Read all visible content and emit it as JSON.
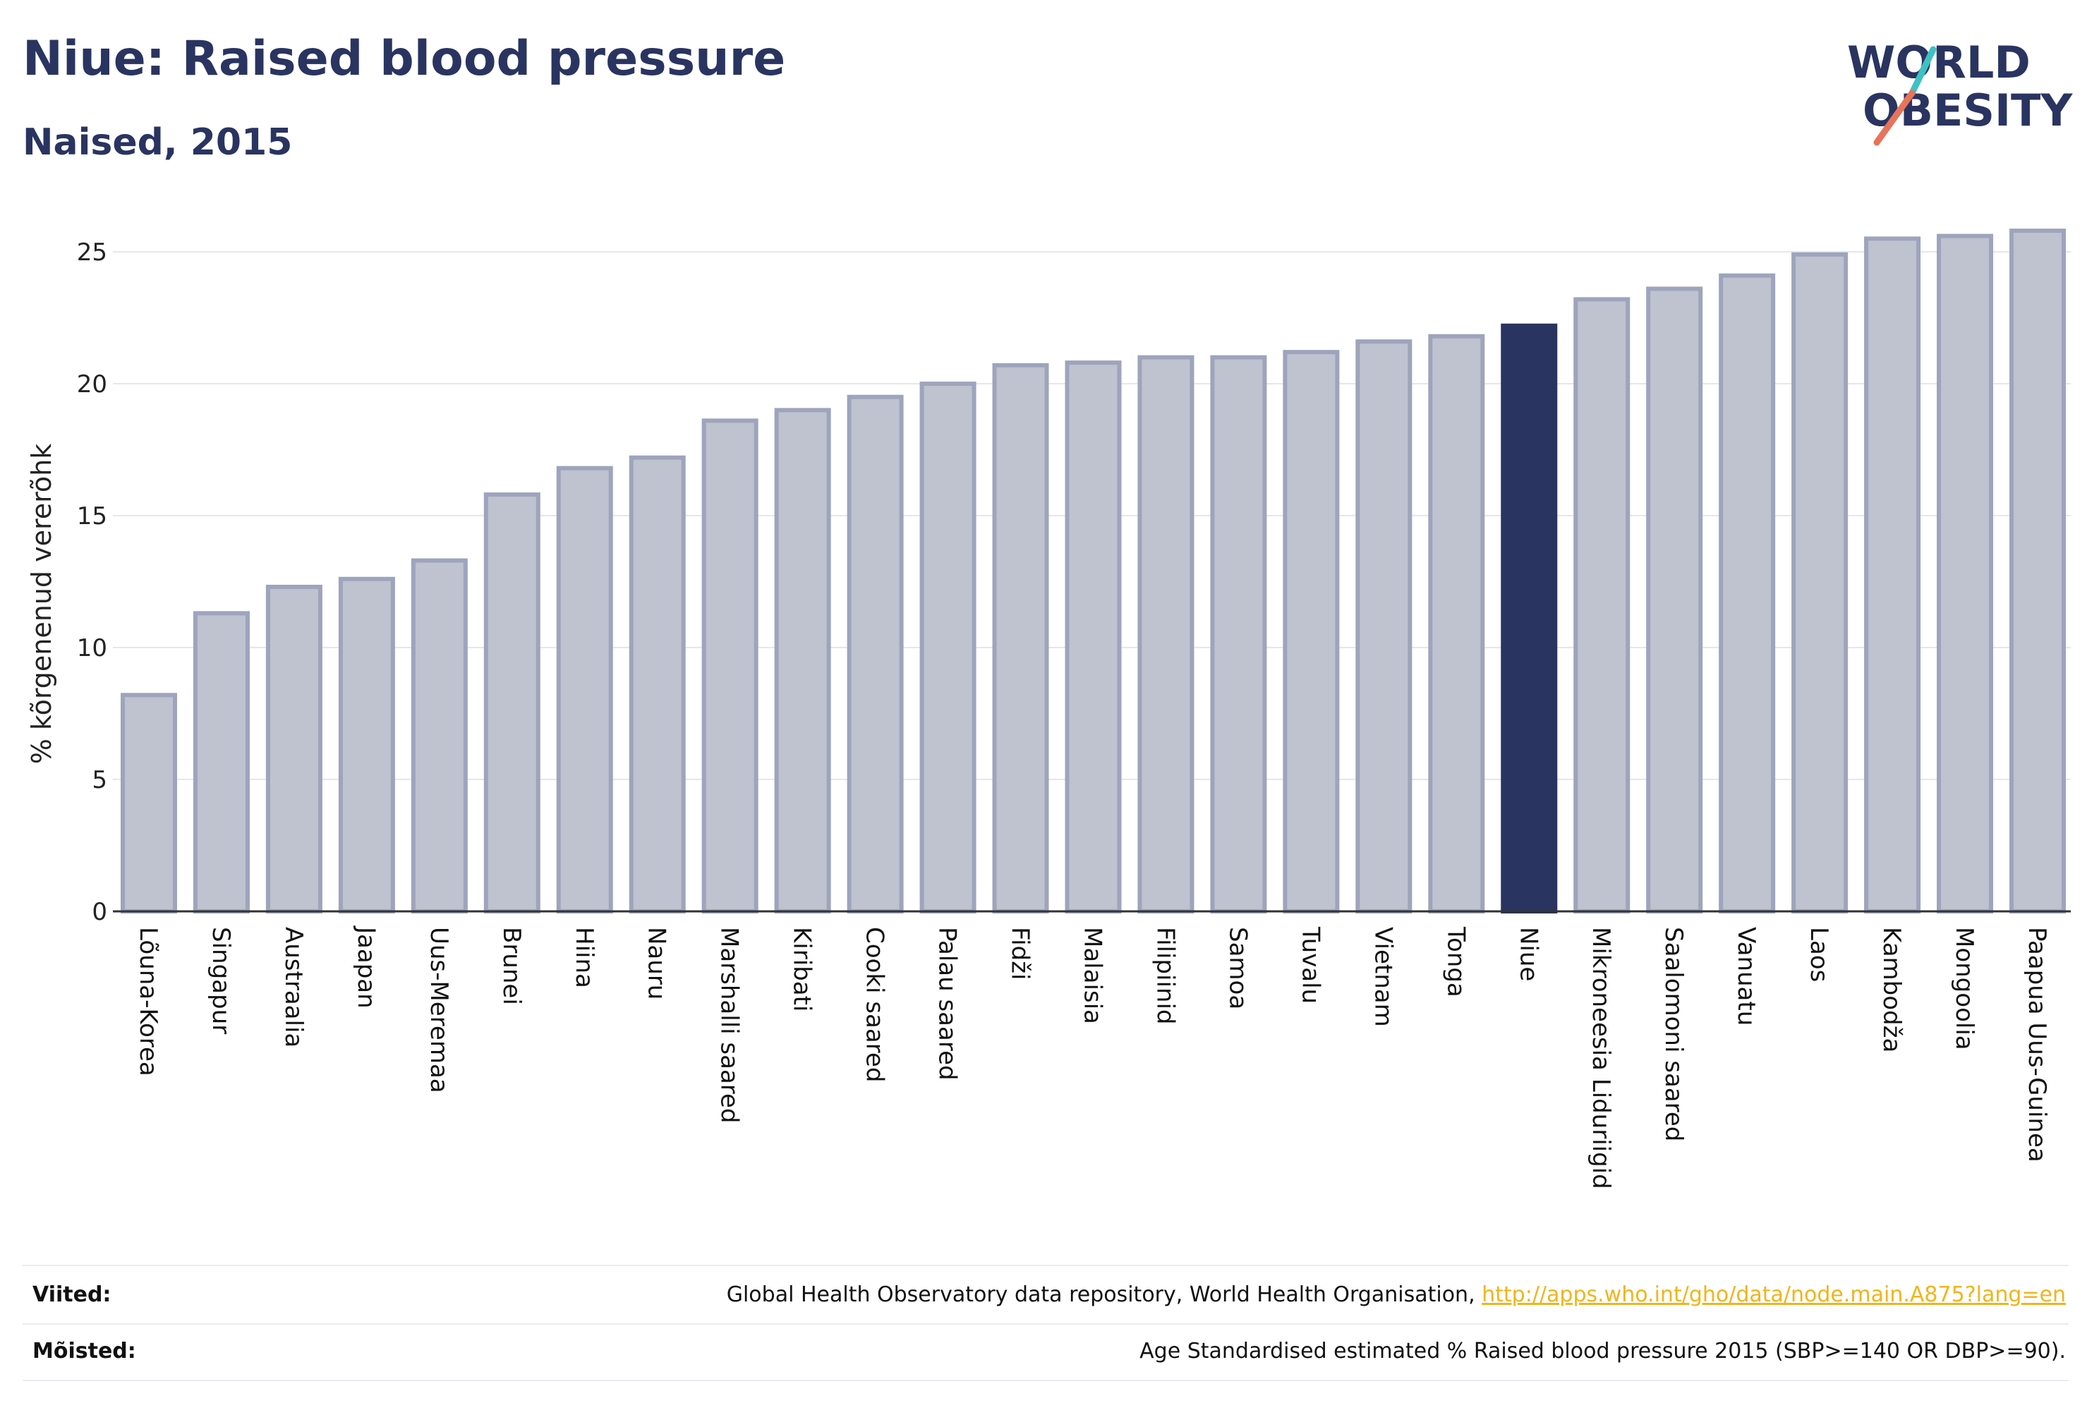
{
  "header": {
    "title": "Niue: Raised blood pressure",
    "subtitle": "Naised, 2015"
  },
  "logo": {
    "line1": "WORLD",
    "line2": "OBESITY",
    "colors": {
      "text": "#2a3461",
      "slash_top": "#3ec1c3",
      "slash_bottom": "#e8735a"
    }
  },
  "colors": {
    "bar_default": "#bfc2cf",
    "bar_default_stroke": "#9ea4bc",
    "bar_highlight": "#2a3461",
    "grid": "#e6e6ec",
    "axis": "#333333"
  },
  "chart_data": {
    "type": "bar",
    "ylabel": "% kõrgenenud vererõhk",
    "xlabel": "",
    "ylim": [
      0,
      27
    ],
    "yticks": [
      0,
      5,
      10,
      15,
      20,
      25
    ],
    "grid": true,
    "highlight": "Niue",
    "categories": [
      "Lõuna-Korea",
      "Singapur",
      "Austraalia",
      "Jaapan",
      "Uus-Meremaa",
      "Brunei",
      "Hiina",
      "Nauru",
      "Marshalli saared",
      "Kiribati",
      "Cooki saared",
      "Palau saared",
      "Fidži",
      "Malaisia",
      "Filipiinid",
      "Samoa",
      "Tuvalu",
      "Vietnam",
      "Tonga",
      "Niue",
      "Mikroneesia Liduriigid",
      "Saalomoni saared",
      "Vanuatu",
      "Laos",
      "Kambodža",
      "Mongoolia",
      "Paapua Uus-Guinea"
    ],
    "values": [
      8.2,
      11.3,
      12.3,
      12.6,
      13.3,
      15.8,
      16.8,
      17.2,
      18.6,
      19.0,
      19.5,
      20.0,
      20.7,
      20.8,
      21.0,
      21.0,
      21.2,
      21.6,
      21.8,
      22.2,
      23.2,
      23.6,
      24.1,
      24.9,
      25.5,
      25.6,
      25.8
    ]
  },
  "footer": {
    "sources_label": "Viited:",
    "sources_text": "Global Health Observatory data repository, World Health Organisation, ",
    "sources_link": "http://apps.who.int/gho/data/node.main.A875?lang=en",
    "definitions_label": "Mõisted:",
    "definitions_text": "Age Standardised estimated % Raised blood pressure 2015 (SBP>=140 OR DBP>=90)."
  }
}
